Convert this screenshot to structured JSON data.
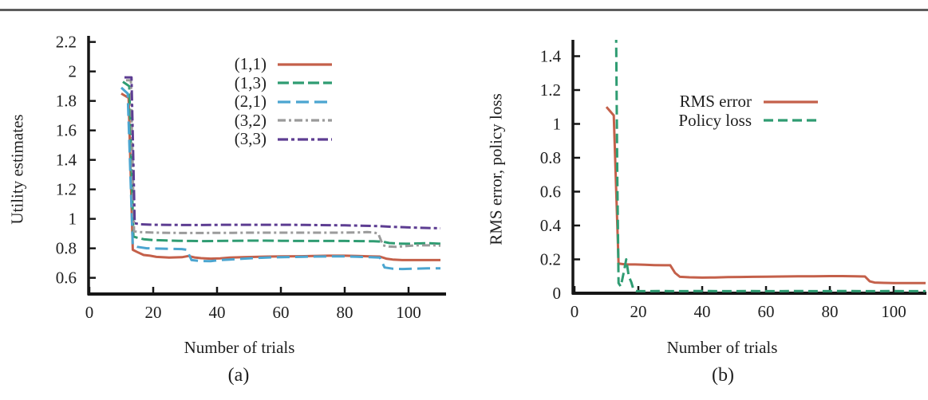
{
  "page": {
    "background": "#ffffff",
    "top_rule_color": "#5d5d5d"
  },
  "colors": {
    "axis": "#161616",
    "text": "#1f1f1f",
    "red": "#c4604a",
    "green": "#2f9c72",
    "blue": "#4ba5d0",
    "gray": "#9b9b9b",
    "purple": "#5d3d92"
  },
  "chart_data": [
    {
      "type": "line",
      "panel": "left",
      "caption": "(a)",
      "xlabel": "Number of trials",
      "ylabel": "Utility estimates",
      "xlim": [
        0,
        112
      ],
      "ylim": [
        0.49,
        2.24
      ],
      "xticks": [
        0,
        20,
        40,
        60,
        80,
        100
      ],
      "xtick_labels": [
        "0",
        "20",
        "40",
        "60",
        "80",
        "100"
      ],
      "yticks": [
        0.6,
        0.8,
        1,
        1.2,
        1.4,
        1.6,
        1.8,
        2,
        2.2
      ],
      "ytick_labels": [
        "0.6",
        "0.8",
        "1",
        "1.2",
        "1.4",
        "1.6",
        "1.8",
        "2",
        "2.2"
      ],
      "grid": false,
      "legend_position": "upper center",
      "series": [
        {
          "name": "(1,1)",
          "color": "#c4604a",
          "dash": "solid",
          "points": [
            [
              10,
              1.85
            ],
            [
              12.3,
              1.82
            ],
            [
              13.6,
              0.79
            ],
            [
              15,
              0.775
            ],
            [
              17,
              0.755
            ],
            [
              19,
              0.75
            ],
            [
              21,
              0.742
            ],
            [
              25,
              0.737
            ],
            [
              29,
              0.74
            ],
            [
              31,
              0.748
            ],
            [
              33,
              0.738
            ],
            [
              35,
              0.733
            ],
            [
              38,
              0.73
            ],
            [
              41,
              0.732
            ],
            [
              44,
              0.737
            ],
            [
              48,
              0.74
            ],
            [
              52,
              0.742
            ],
            [
              56,
              0.744
            ],
            [
              60,
              0.745
            ],
            [
              65,
              0.746
            ],
            [
              70,
              0.748
            ],
            [
              75,
              0.75
            ],
            [
              80,
              0.75
            ],
            [
              84,
              0.748
            ],
            [
              88,
              0.745
            ],
            [
              91,
              0.744
            ],
            [
              93,
              0.73
            ],
            [
              95,
              0.724
            ],
            [
              98,
              0.72
            ],
            [
              102,
              0.72
            ],
            [
              106,
              0.72
            ],
            [
              110,
              0.72
            ]
          ]
        },
        {
          "name": "(1,3)",
          "color": "#2f9c72",
          "dash": "14 5",
          "points": [
            [
              10.5,
              1.93
            ],
            [
              12.5,
              1.9
            ],
            [
              13.8,
              0.88
            ],
            [
              15,
              0.872
            ],
            [
              17,
              0.862
            ],
            [
              20,
              0.856
            ],
            [
              24,
              0.853
            ],
            [
              28,
              0.851
            ],
            [
              32,
              0.85
            ],
            [
              36,
              0.849
            ],
            [
              40,
              0.85
            ],
            [
              45,
              0.851
            ],
            [
              50,
              0.852
            ],
            [
              55,
              0.852
            ],
            [
              60,
              0.851
            ],
            [
              65,
              0.85
            ],
            [
              70,
              0.85
            ],
            [
              75,
              0.85
            ],
            [
              80,
              0.85
            ],
            [
              85,
              0.849
            ],
            [
              89,
              0.848
            ],
            [
              92,
              0.845
            ],
            [
              94,
              0.836
            ],
            [
              97,
              0.832
            ],
            [
              100,
              0.831
            ],
            [
              103,
              0.833
            ],
            [
              106,
              0.835
            ],
            [
              110,
              0.831
            ]
          ]
        },
        {
          "name": "(2,1)",
          "color": "#4ba5d0",
          "dash": "16 7",
          "points": [
            [
              10,
              1.89
            ],
            [
              12,
              1.85
            ],
            [
              13.6,
              0.82
            ],
            [
              15,
              0.81
            ],
            [
              18,
              0.8
            ],
            [
              22,
              0.798
            ],
            [
              26,
              0.796
            ],
            [
              29,
              0.795
            ],
            [
              30.5,
              0.79
            ],
            [
              32,
              0.72
            ],
            [
              35,
              0.714
            ],
            [
              38,
              0.713
            ],
            [
              41,
              0.72
            ],
            [
              44,
              0.724
            ],
            [
              47,
              0.728
            ],
            [
              50,
              0.732
            ],
            [
              54,
              0.736
            ],
            [
              58,
              0.739
            ],
            [
              62,
              0.741
            ],
            [
              66,
              0.742
            ],
            [
              70,
              0.744
            ],
            [
              75,
              0.745
            ],
            [
              80,
              0.745
            ],
            [
              84,
              0.743
            ],
            [
              88,
              0.74
            ],
            [
              91,
              0.737
            ],
            [
              92.5,
              0.67
            ],
            [
              95,
              0.662
            ],
            [
              98,
              0.66
            ],
            [
              102,
              0.662
            ],
            [
              106,
              0.664
            ],
            [
              110,
              0.664
            ]
          ]
        },
        {
          "name": "(3,2)",
          "color": "#9b9b9b",
          "dash": "10 4 3 4",
          "points": [
            [
              11.5,
              1.94
            ],
            [
              13,
              1.94
            ],
            [
              14,
              0.915
            ],
            [
              16,
              0.91
            ],
            [
              20,
              0.907
            ],
            [
              25,
              0.905
            ],
            [
              30,
              0.904
            ],
            [
              35,
              0.904
            ],
            [
              40,
              0.905
            ],
            [
              45,
              0.905
            ],
            [
              50,
              0.906
            ],
            [
              55,
              0.906
            ],
            [
              60,
              0.906
            ],
            [
              65,
              0.906
            ],
            [
              70,
              0.906
            ],
            [
              75,
              0.906
            ],
            [
              80,
              0.907
            ],
            [
              84,
              0.908
            ],
            [
              87,
              0.91
            ],
            [
              89,
              0.908
            ],
            [
              90.5,
              0.9
            ],
            [
              92,
              0.82
            ],
            [
              94,
              0.812
            ],
            [
              96,
              0.81
            ],
            [
              99,
              0.815
            ],
            [
              102,
              0.82
            ],
            [
              105,
              0.82
            ],
            [
              108,
              0.82
            ],
            [
              110,
              0.818
            ]
          ]
        },
        {
          "name": "(3,3)",
          "color": "#5d3d92",
          "dash": "13 4 4 4",
          "points": [
            [
              11,
              1.96
            ],
            [
              13.2,
              1.96
            ],
            [
              14.2,
              0.97
            ],
            [
              16,
              0.963
            ],
            [
              20,
              0.96
            ],
            [
              25,
              0.959
            ],
            [
              30,
              0.958
            ],
            [
              35,
              0.958
            ],
            [
              40,
              0.959
            ],
            [
              45,
              0.96
            ],
            [
              50,
              0.96
            ],
            [
              55,
              0.96
            ],
            [
              60,
              0.96
            ],
            [
              65,
              0.959
            ],
            [
              70,
              0.958
            ],
            [
              75,
              0.957
            ],
            [
              80,
              0.956
            ],
            [
              85,
              0.954
            ],
            [
              88,
              0.952
            ],
            [
              91,
              0.95
            ],
            [
              94,
              0.947
            ],
            [
              97,
              0.944
            ],
            [
              100,
              0.942
            ],
            [
              103,
              0.94
            ],
            [
              106,
              0.938
            ],
            [
              110,
              0.936
            ]
          ]
        }
      ]
    },
    {
      "type": "line",
      "panel": "right",
      "caption": "(b)",
      "xlabel": "Number of trials",
      "ylabel": "RMS error, policy loss",
      "xlim": [
        0,
        110
      ],
      "ylim": [
        0,
        1.5
      ],
      "xticks": [
        0,
        20,
        40,
        60,
        80,
        100
      ],
      "xtick_labels": [
        "0",
        "20",
        "40",
        "60",
        "80",
        "100"
      ],
      "yticks": [
        0,
        0.2,
        0.4,
        0.6,
        0.8,
        1,
        1.2,
        1.4
      ],
      "ytick_labels": [
        "0",
        "0.2",
        "0.4",
        "0.6",
        "0.8",
        "1",
        "1.2",
        "1.4"
      ],
      "grid": false,
      "legend_position": "upper center",
      "series": [
        {
          "name": "RMS error",
          "color": "#c4604a",
          "dash": "solid",
          "points": [
            [
              10,
              1.1
            ],
            [
              12.3,
              1.05
            ],
            [
              13.8,
              0.175
            ],
            [
              16,
              0.17
            ],
            [
              19,
              0.17
            ],
            [
              22,
              0.168
            ],
            [
              25,
              0.166
            ],
            [
              28,
              0.165
            ],
            [
              30,
              0.165
            ],
            [
              31.5,
              0.12
            ],
            [
              33,
              0.097
            ],
            [
              36,
              0.094
            ],
            [
              40,
              0.092
            ],
            [
              44,
              0.093
            ],
            [
              48,
              0.095
            ],
            [
              52,
              0.096
            ],
            [
              56,
              0.097
            ],
            [
              60,
              0.098
            ],
            [
              65,
              0.099
            ],
            [
              70,
              0.1
            ],
            [
              75,
              0.1
            ],
            [
              80,
              0.101
            ],
            [
              84,
              0.101
            ],
            [
              88,
              0.1
            ],
            [
              91,
              0.099
            ],
            [
              92.5,
              0.07
            ],
            [
              94,
              0.063
            ],
            [
              97,
              0.061
            ],
            [
              100,
              0.06
            ],
            [
              104,
              0.06
            ],
            [
              108,
              0.06
            ],
            [
              110,
              0.06
            ]
          ]
        },
        {
          "name": "Policy loss",
          "color": "#2f9c72",
          "dash": "12 6",
          "points": [
            [
              13,
              1.62
            ],
            [
              13.4,
              0.7
            ],
            [
              13.8,
              0.06
            ],
            [
              14.5,
              0.04
            ],
            [
              15.5,
              0.13
            ],
            [
              16.2,
              0.2
            ],
            [
              17,
              0.1
            ],
            [
              17.8,
              0.065
            ],
            [
              18.5,
              0.02
            ],
            [
              19.5,
              0.012
            ],
            [
              22,
              0.012
            ],
            [
              26,
              0.013
            ],
            [
              30,
              0.012
            ],
            [
              35,
              0.012
            ],
            [
              40,
              0.013
            ],
            [
              45,
              0.012
            ],
            [
              50,
              0.012
            ],
            [
              55,
              0.013
            ],
            [
              60,
              0.012
            ],
            [
              65,
              0.012
            ],
            [
              70,
              0.013
            ],
            [
              75,
              0.012
            ],
            [
              80,
              0.012
            ],
            [
              85,
              0.013
            ],
            [
              90,
              0.012
            ],
            [
              95,
              0.012
            ],
            [
              100,
              0.013
            ],
            [
              105,
              0.012
            ],
            [
              110,
              0.012
            ]
          ]
        }
      ]
    }
  ]
}
